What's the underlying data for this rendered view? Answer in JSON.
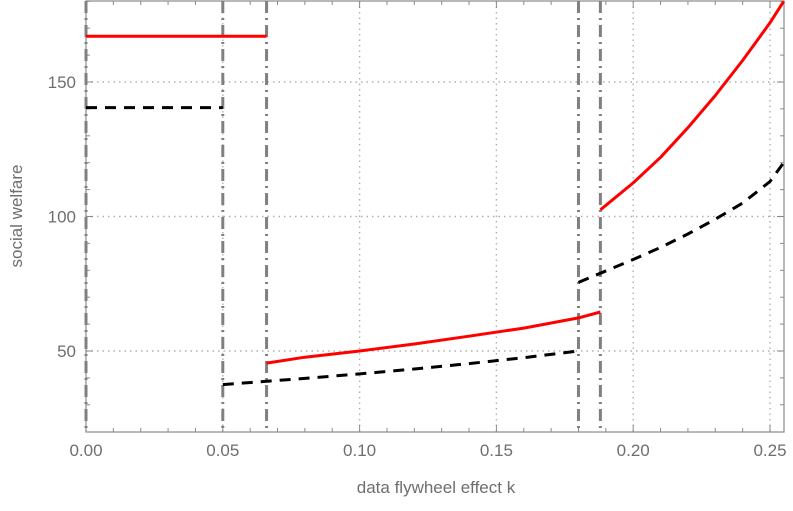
{
  "chart_data": {
    "type": "line",
    "title": "",
    "xlabel": "data flywheel effect k",
    "ylabel": "social welfare",
    "xlim": [
      0,
      0.255
    ],
    "ylim": [
      20,
      180
    ],
    "xticks": [
      "0.00",
      "0.05",
      "0.10",
      "0.15",
      "0.20",
      "0.25"
    ],
    "yticks": [
      "50",
      "100",
      "150"
    ],
    "grid": true,
    "legend": null,
    "vertical_lines": [
      {
        "x": 0.0,
        "style": "dash-dot",
        "color": "#808080"
      },
      {
        "x": 0.05,
        "style": "dash-dot",
        "color": "#808080"
      },
      {
        "x": 0.066,
        "style": "dash-dot",
        "color": "#808080"
      },
      {
        "x": 0.18,
        "style": "dash-dot",
        "color": "#808080"
      },
      {
        "x": 0.188,
        "style": "dash-dot",
        "color": "#808080"
      }
    ],
    "series": [
      {
        "name": "red-solid",
        "color": "#ff0000",
        "style": "solid",
        "segments": [
          {
            "x": [
              0.0,
              0.066
            ],
            "y": [
              167,
              167
            ]
          },
          {
            "x": [
              0.066,
              0.08,
              0.1,
              0.12,
              0.14,
              0.16,
              0.18,
              0.188
            ],
            "y": [
              45.5,
              47.7,
              50.0,
              52.6,
              55.5,
              58.5,
              62.3,
              64.5
            ]
          },
          {
            "x": [
              0.188,
              0.2,
              0.21,
              0.22,
              0.23,
              0.24,
              0.25,
              0.255
            ],
            "y": [
              102.5,
              112.5,
              122,
              133,
              145,
              158,
              172,
              180
            ]
          }
        ]
      },
      {
        "name": "black-dashed",
        "color": "#000000",
        "style": "dashed",
        "segments": [
          {
            "x": [
              0.0,
              0.05
            ],
            "y": [
              140.5,
              140.5
            ]
          },
          {
            "x": [
              0.05,
              0.08,
              0.1,
              0.12,
              0.14,
              0.16,
              0.18
            ],
            "y": [
              37.5,
              39.8,
              41.5,
              43.3,
              45.3,
              47.5,
              50.0
            ]
          },
          {
            "x": [
              0.18,
              0.2,
              0.21,
              0.22,
              0.23,
              0.24,
              0.25,
              0.255
            ],
            "y": [
              75.5,
              84,
              88.5,
              93.5,
              99,
              105,
              113,
              120
            ]
          }
        ]
      }
    ]
  }
}
